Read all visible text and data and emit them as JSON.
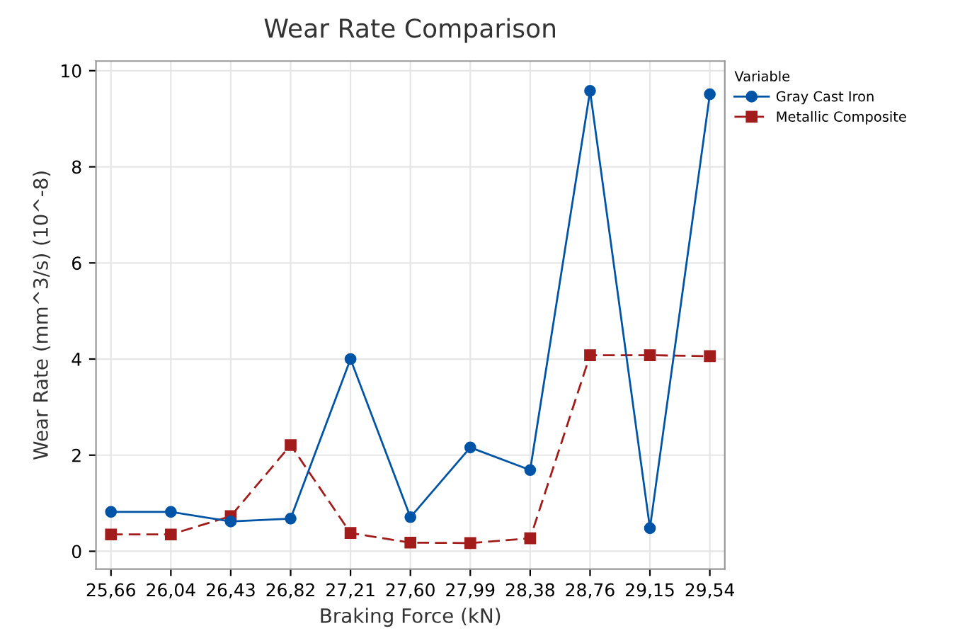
{
  "chart_data": {
    "type": "line",
    "title": "Wear Rate Comparison",
    "xlabel": "Braking Force (kN)",
    "ylabel": "Wear Rate (mm^3/s) (10^-8)",
    "categories": [
      "25,66",
      "26,04",
      "26,43",
      "26,82",
      "27,21",
      "27,60",
      "27,99",
      "28,38",
      "28,76",
      "29,15",
      "29,54"
    ],
    "series": [
      {
        "name": "Gray Cast Iron",
        "color": "#0054a6",
        "marker": "circle",
        "line_style": "solid",
        "values": [
          0.82,
          0.82,
          0.62,
          0.68,
          4.0,
          0.71,
          2.16,
          1.69,
          9.58,
          0.48,
          9.51
        ]
      },
      {
        "name": "Metallic Composite",
        "color": "#a31c1c",
        "marker": "square",
        "line_style": "dashed",
        "values": [
          0.35,
          0.35,
          0.73,
          2.21,
          0.38,
          0.18,
          0.17,
          0.27,
          4.08,
          4.08,
          4.06
        ]
      }
    ],
    "ylim": [
      -0.37,
      10.2
    ],
    "yticks": [
      0,
      2,
      4,
      6,
      8,
      10
    ],
    "grid": true,
    "legend": "top right",
    "legend_title": "Variable"
  }
}
